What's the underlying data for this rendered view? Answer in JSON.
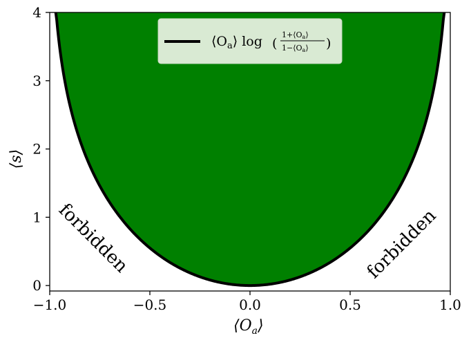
{
  "chart_data": {
    "type": "area",
    "title": "",
    "xlabel": "⟨O",
    "xlabel_sub": "a",
    "xlabel_close": "⟩",
    "ylabel": "⟨s⟩",
    "xlim": [
      -1.0,
      1.0
    ],
    "ylim": [
      -0.08,
      4.0
    ],
    "x_ticks": [
      -1.0,
      -0.5,
      0.0,
      0.5,
      1.0
    ],
    "x_tick_labels": [
      "−1.0",
      "−0.5",
      "0.0",
      "0.5",
      "1.0"
    ],
    "y_ticks": [
      0,
      1,
      2,
      3,
      4
    ],
    "y_tick_labels": [
      "0",
      "1",
      "2",
      "3",
      "4"
    ],
    "grid": false,
    "legend_position": "top-center",
    "series": [
      {
        "name": "⟨O_a⟩ log((1+⟨O_a⟩)/(1−⟨O_a⟩))",
        "function": "x*log((1+x)/(1-x))",
        "x": [
          -0.97,
          -0.95,
          -0.9,
          -0.8,
          -0.7,
          -0.6,
          -0.5,
          -0.4,
          -0.3,
          -0.2,
          -0.1,
          0.0,
          0.1,
          0.2,
          0.3,
          0.4,
          0.5,
          0.6,
          0.7,
          0.8,
          0.9,
          0.95,
          0.97
        ],
        "y": [
          4.0,
          3.47,
          2.65,
          1.76,
          1.21,
          0.83,
          0.55,
          0.34,
          0.19,
          0.081,
          0.02,
          0.0,
          0.02,
          0.081,
          0.19,
          0.34,
          0.55,
          0.83,
          1.21,
          1.76,
          2.65,
          3.47,
          4.0
        ],
        "line_color": "#000000",
        "fill_color": "#008000"
      }
    ],
    "legend": {
      "label_main": "⟨O",
      "label_sub": "a",
      "label_log": "⟩ log",
      "frac_numerator": "1+⟨O",
      "frac_denominator": "1−⟨O",
      "frac_close": "⟩"
    },
    "annotations": [
      {
        "text": "forbidden",
        "side": "left",
        "rotation": 45
      },
      {
        "text": "forbidden",
        "side": "right",
        "rotation": -45
      }
    ],
    "colors": {
      "fill": "#008000",
      "curve": "#000000",
      "legend_bg": "#d9ead3"
    }
  }
}
